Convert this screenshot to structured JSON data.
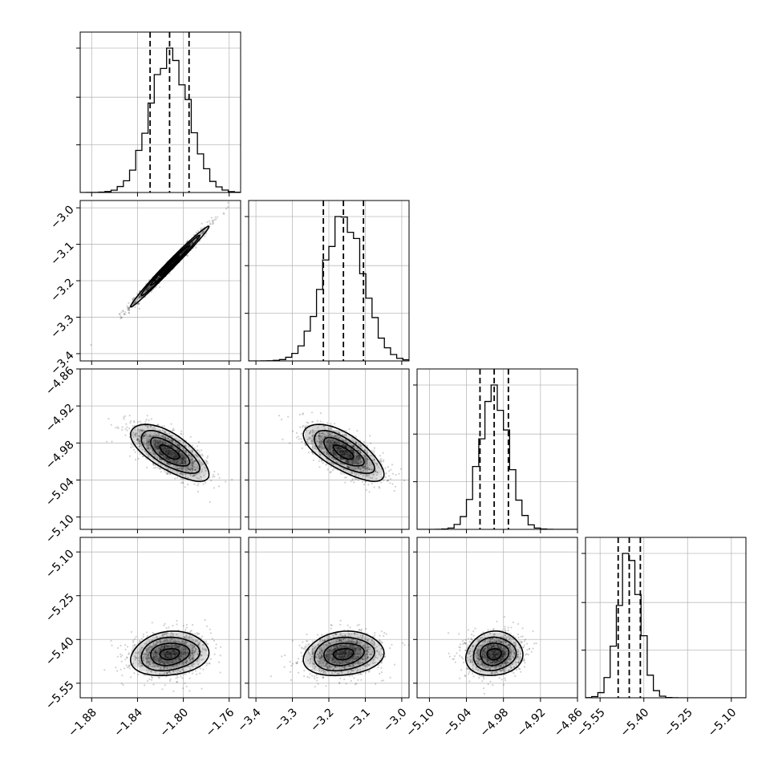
{
  "chart_data": {
    "type": "corner",
    "parameters": [
      {
        "range": [
          -1.89,
          -1.75
        ],
        "ticks": [
          -1.88,
          -1.84,
          -1.8,
          -1.76
        ],
        "tick_labels": [
          "−1.88",
          "−1.84",
          "−1.80",
          "−1.76"
        ],
        "mean": -1.812,
        "sigma": 0.017,
        "quantiles": [
          -1.829,
          -1.812,
          -1.795
        ]
      },
      {
        "range": [
          -3.42,
          -2.98
        ],
        "ticks": [
          -3.4,
          -3.3,
          -3.2,
          -3.1,
          -3.0
        ],
        "tick_labels": [
          "−3.4",
          "−3.3",
          "−3.2",
          "−3.1",
          "−3.0"
        ],
        "mean": -3.16,
        "sigma": 0.055,
        "quantiles": [
          -3.215,
          -3.16,
          -3.105
        ]
      },
      {
        "range": [
          -5.12,
          -4.86
        ],
        "ticks": [
          -5.1,
          -5.04,
          -4.98,
          -4.92,
          -4.86
        ],
        "tick_labels": [
          "−5.10",
          "−5.04",
          "−4.98",
          "−4.92",
          "−4.86"
        ],
        "mean": -4.995,
        "sigma": 0.023,
        "quantiles": [
          -5.018,
          -4.995,
          -4.972
        ]
      },
      {
        "range": [
          -5.6,
          -5.05
        ],
        "ticks": [
          -5.55,
          -5.4,
          -5.25,
          -5.1
        ],
        "tick_labels": [
          "−5.55",
          "−5.40",
          "−5.25",
          "−5.10"
        ],
        "mean": -5.45,
        "sigma": 0.038,
        "quantiles": [
          -5.488,
          -5.45,
          -5.412
        ]
      }
    ],
    "correlations": [
      [
        1,
        0.99,
        -0.7,
        0.15
      ],
      [
        0.99,
        1,
        -0.7,
        0.15
      ],
      [
        -0.7,
        -0.7,
        1,
        0.08
      ],
      [
        0.15,
        0.15,
        0.08,
        1
      ]
    ],
    "contour_sigma_levels": [
      0.5,
      1,
      1.5,
      2
    ],
    "grid": true,
    "colors": {
      "line": "#000000",
      "grid": "#b0b0b0",
      "density": "#000000"
    }
  }
}
